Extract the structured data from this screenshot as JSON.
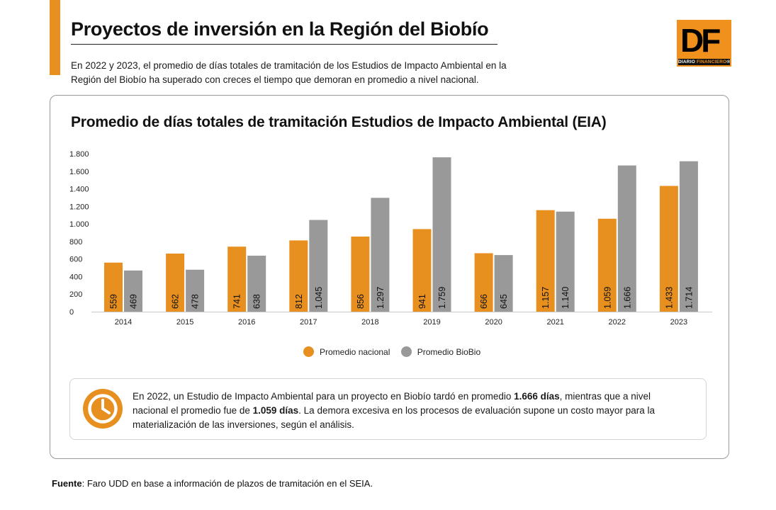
{
  "header": {
    "title": "Proyectos de inversión en la Región del Biobío",
    "subtitle": "En 2022 y 2023, el promedio de días totales de tramitación de los Estudios de Impacto Ambiental en la Región del Biobío ha superado con creces el tiempo que demoran en promedio a nivel nacional."
  },
  "logo": {
    "letters": "DF",
    "band_prefix": "DIARIO ",
    "band_highlight": "FINANCIERO",
    "band_suffix": "®"
  },
  "colors": {
    "accent": "#e8901f",
    "nacional": "#e8901f",
    "biobio": "#999999"
  },
  "chart_data": {
    "type": "bar",
    "title": "Promedio de días totales de tramitación Estudios de Impacto Ambiental (EIA)",
    "xlabel": "",
    "ylabel": "",
    "ylim": [
      0,
      1800
    ],
    "yticks": [
      0,
      200,
      400,
      600,
      800,
      1000,
      1200,
      1400,
      1600,
      1800
    ],
    "ytick_labels": [
      "0",
      "200",
      "400",
      "600",
      "800",
      "1.000",
      "1.200",
      "1.400",
      "1.600",
      "1.800"
    ],
    "grid": false,
    "legend_position": "bottom-center",
    "categories": [
      "2014",
      "2015",
      "2016",
      "2017",
      "2018",
      "2019",
      "2020",
      "2021",
      "2022",
      "2023"
    ],
    "series": [
      {
        "name": "Promedio nacional",
        "color": "#e8901f",
        "values": [
          559,
          662,
          741,
          812,
          856,
          941,
          666,
          1157,
          1059,
          1433
        ],
        "labels": [
          "559",
          "662",
          "741",
          "812",
          "856",
          "941",
          "666",
          "1.157",
          "1.059",
          "1.433"
        ]
      },
      {
        "name": "Promedio BioBio",
        "color": "#999999",
        "values": [
          469,
          478,
          638,
          1045,
          1297,
          1759,
          645,
          1140,
          1666,
          1714
        ],
        "labels": [
          "469",
          "478",
          "638",
          "1.045",
          "1.297",
          "1.759",
          "645",
          "1.140",
          "1.666",
          "1.714"
        ]
      }
    ]
  },
  "note": {
    "icon": "clock-icon",
    "text_1": "En 2022, un Estudio de Impacto Ambiental para un proyecto en Biobío tardó en promedio ",
    "bold_1": "1.666 días",
    "text_2": ", mientras que a nivel nacional el promedio fue de ",
    "bold_2": "1.059 días",
    "text_3": ". La demora excesiva en los procesos de evaluación supone un costo mayor para la materialización de las inversiones, según el análisis."
  },
  "source": {
    "label": "Fuente",
    "text": ": Faro UDD en base a información de plazos de tramitación en el SEIA."
  }
}
